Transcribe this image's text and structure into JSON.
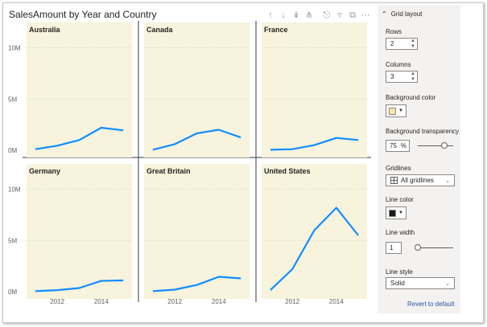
{
  "visual": {
    "title": "SalesAmount by Year and Country",
    "toolbar_icons": [
      "drill-up-icon",
      "drill-down-icon",
      "expand-next-level-icon",
      "expand-all-icon",
      "pin-icon",
      "filter-icon",
      "focus-mode-icon",
      "more-options-icon"
    ]
  },
  "chart_data": {
    "type": "line",
    "layout": "small-multiples",
    "rows": 2,
    "columns": 3,
    "x": [
      2011,
      2012,
      2013,
      2014,
      2015
    ],
    "x_tick_labels": [
      "2012",
      "2014"
    ],
    "y_tick_labels": [
      "10M",
      "5M",
      "0M"
    ],
    "ylim": [
      0,
      11000000
    ],
    "background": "#f7f3dc",
    "line_color": "#118dff",
    "gridlines": "All gridlines",
    "series": [
      {
        "name": "Australia",
        "values": [
          100000,
          450000,
          1000000,
          2200000,
          1950000
        ]
      },
      {
        "name": "Canada",
        "values": [
          50000,
          600000,
          1650000,
          2000000,
          1250000
        ]
      },
      {
        "name": "France",
        "values": [
          50000,
          100000,
          500000,
          1200000,
          1000000
        ]
      },
      {
        "name": "Germany",
        "values": [
          50000,
          150000,
          350000,
          1050000,
          1100000
        ]
      },
      {
        "name": "Great Britain",
        "values": [
          50000,
          200000,
          650000,
          1450000,
          1300000
        ]
      },
      {
        "name": "United States",
        "values": [
          150000,
          2200000,
          6000000,
          8200000,
          5500000
        ]
      }
    ]
  },
  "pane": {
    "header": "Grid layout",
    "rows_label": "Rows",
    "rows_value": "2",
    "columns_label": "Columns",
    "columns_value": "3",
    "bgcolor_label": "Background color",
    "bgcolor": "#f7e6a6",
    "transparency_label": "Background transparency",
    "transparency_value": "75",
    "transparency_unit": "%",
    "transparency_fraction": 0.75,
    "gridlines_label": "Gridlines",
    "gridlines_value": "All gridlines",
    "line_color_label": "Line color",
    "line_color": "#1a1a1a",
    "line_width_label": "Line width",
    "line_width_value": "1",
    "line_width_fraction": 0.0,
    "line_style_label": "Line style",
    "line_style_value": "Solid",
    "revert_label": "Revert to default"
  }
}
